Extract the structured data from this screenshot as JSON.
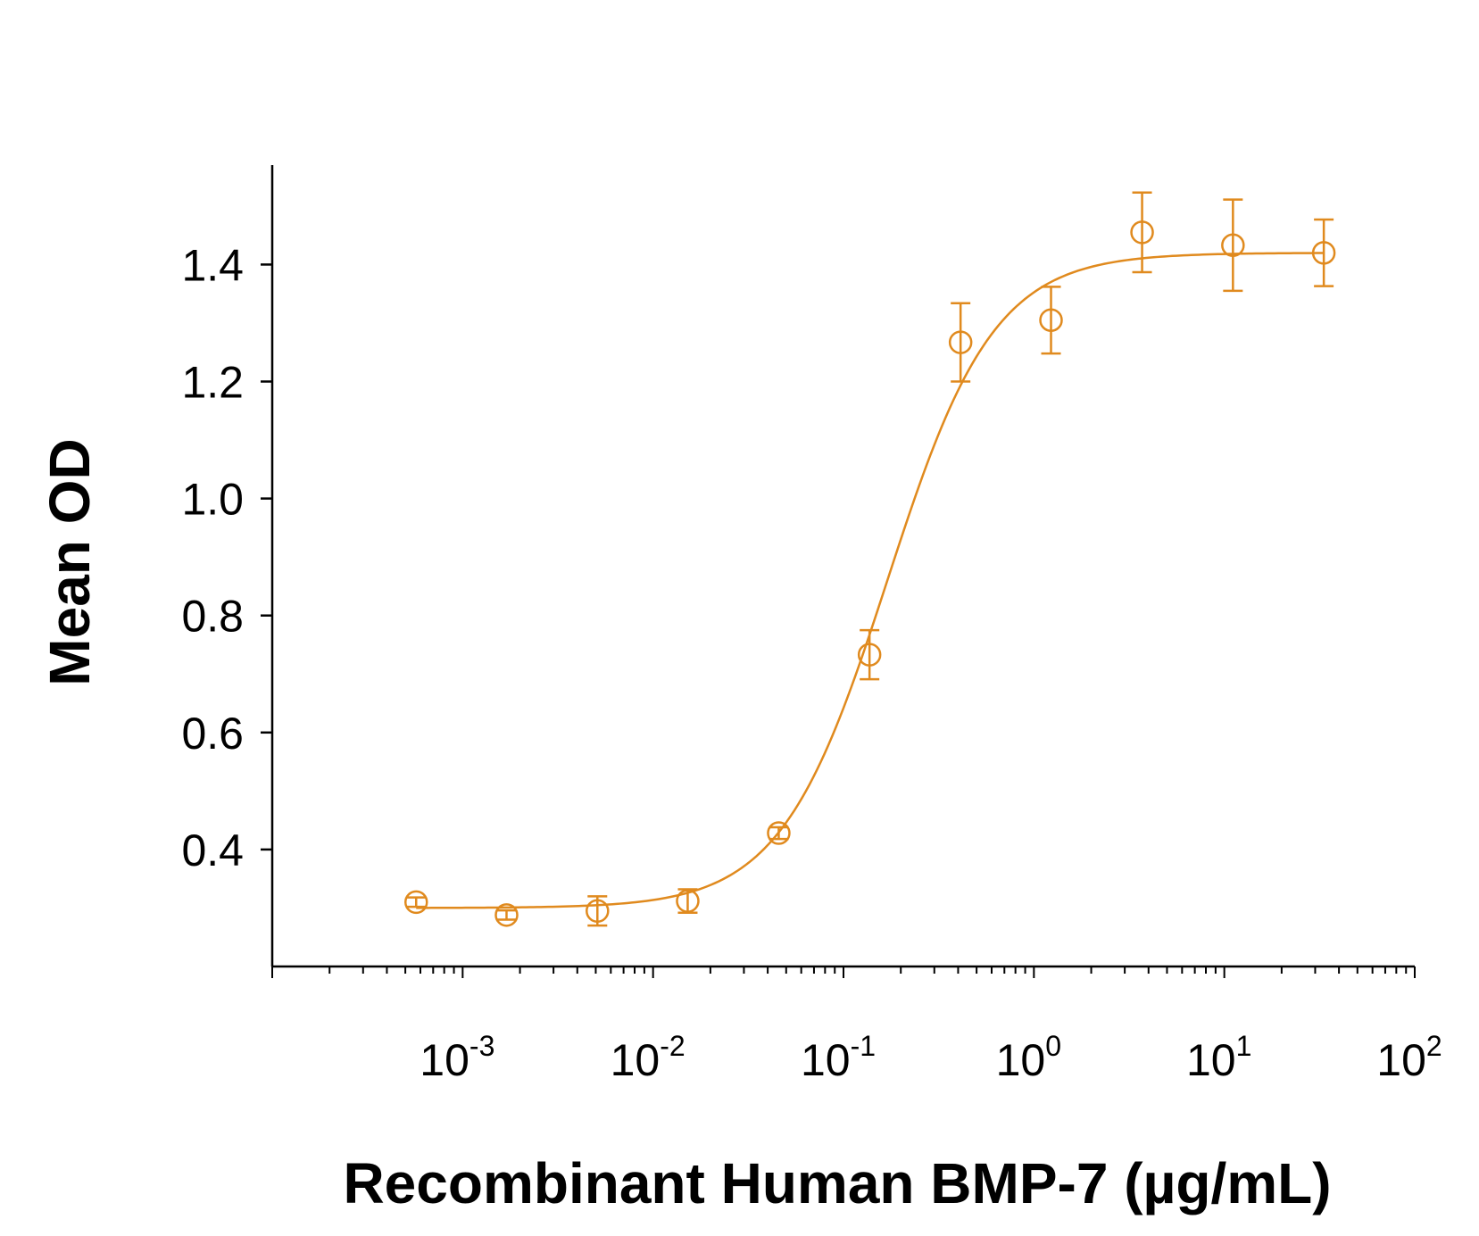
{
  "chart_data": {
    "type": "scatter",
    "title": "",
    "xlabel": "Recombinant Human BMP-7 (µg/mL)",
    "ylabel": "Mean OD",
    "x_scale": "log",
    "xlim": [
      0.0001,
      100
    ],
    "ylim": [
      0.2,
      1.57
    ],
    "grid": false,
    "color": "#E08A1E",
    "x_ticks": [
      {
        "value": 0.001,
        "base": "10",
        "exp": "-3"
      },
      {
        "value": 0.01,
        "base": "10",
        "exp": "-2"
      },
      {
        "value": 0.1,
        "base": "10",
        "exp": "-1"
      },
      {
        "value": 1,
        "base": "10",
        "exp": "0"
      },
      {
        "value": 10,
        "base": "10",
        "exp": "1"
      },
      {
        "value": 100,
        "base": "10",
        "exp": "2"
      }
    ],
    "y_ticks": [
      {
        "value": 0.4,
        "label": "0.4"
      },
      {
        "value": 0.6,
        "label": "0.6"
      },
      {
        "value": 0.8,
        "label": "0.8"
      },
      {
        "value": 1.0,
        "label": "1.0"
      },
      {
        "value": 1.2,
        "label": "1.2"
      },
      {
        "value": 1.4,
        "label": "1.4"
      }
    ],
    "series": [
      {
        "x": [
          0.00057,
          0.0017,
          0.0051,
          0.0152,
          0.0457,
          0.137,
          0.412,
          1.23,
          3.7,
          11.1,
          33.3
        ],
        "y": [
          0.31,
          0.288,
          0.295,
          0.312,
          0.428,
          0.733,
          1.267,
          1.305,
          1.455,
          1.433,
          1.42
        ],
        "error": [
          0.008,
          0.008,
          0.025,
          0.02,
          0.01,
          0.042,
          0.067,
          0.057,
          0.068,
          0.078,
          0.057
        ]
      }
    ],
    "fit": {
      "model": "4PL",
      "bottom": 0.3,
      "top": 1.42,
      "ec50": 0.17,
      "hill": 1.55
    }
  }
}
